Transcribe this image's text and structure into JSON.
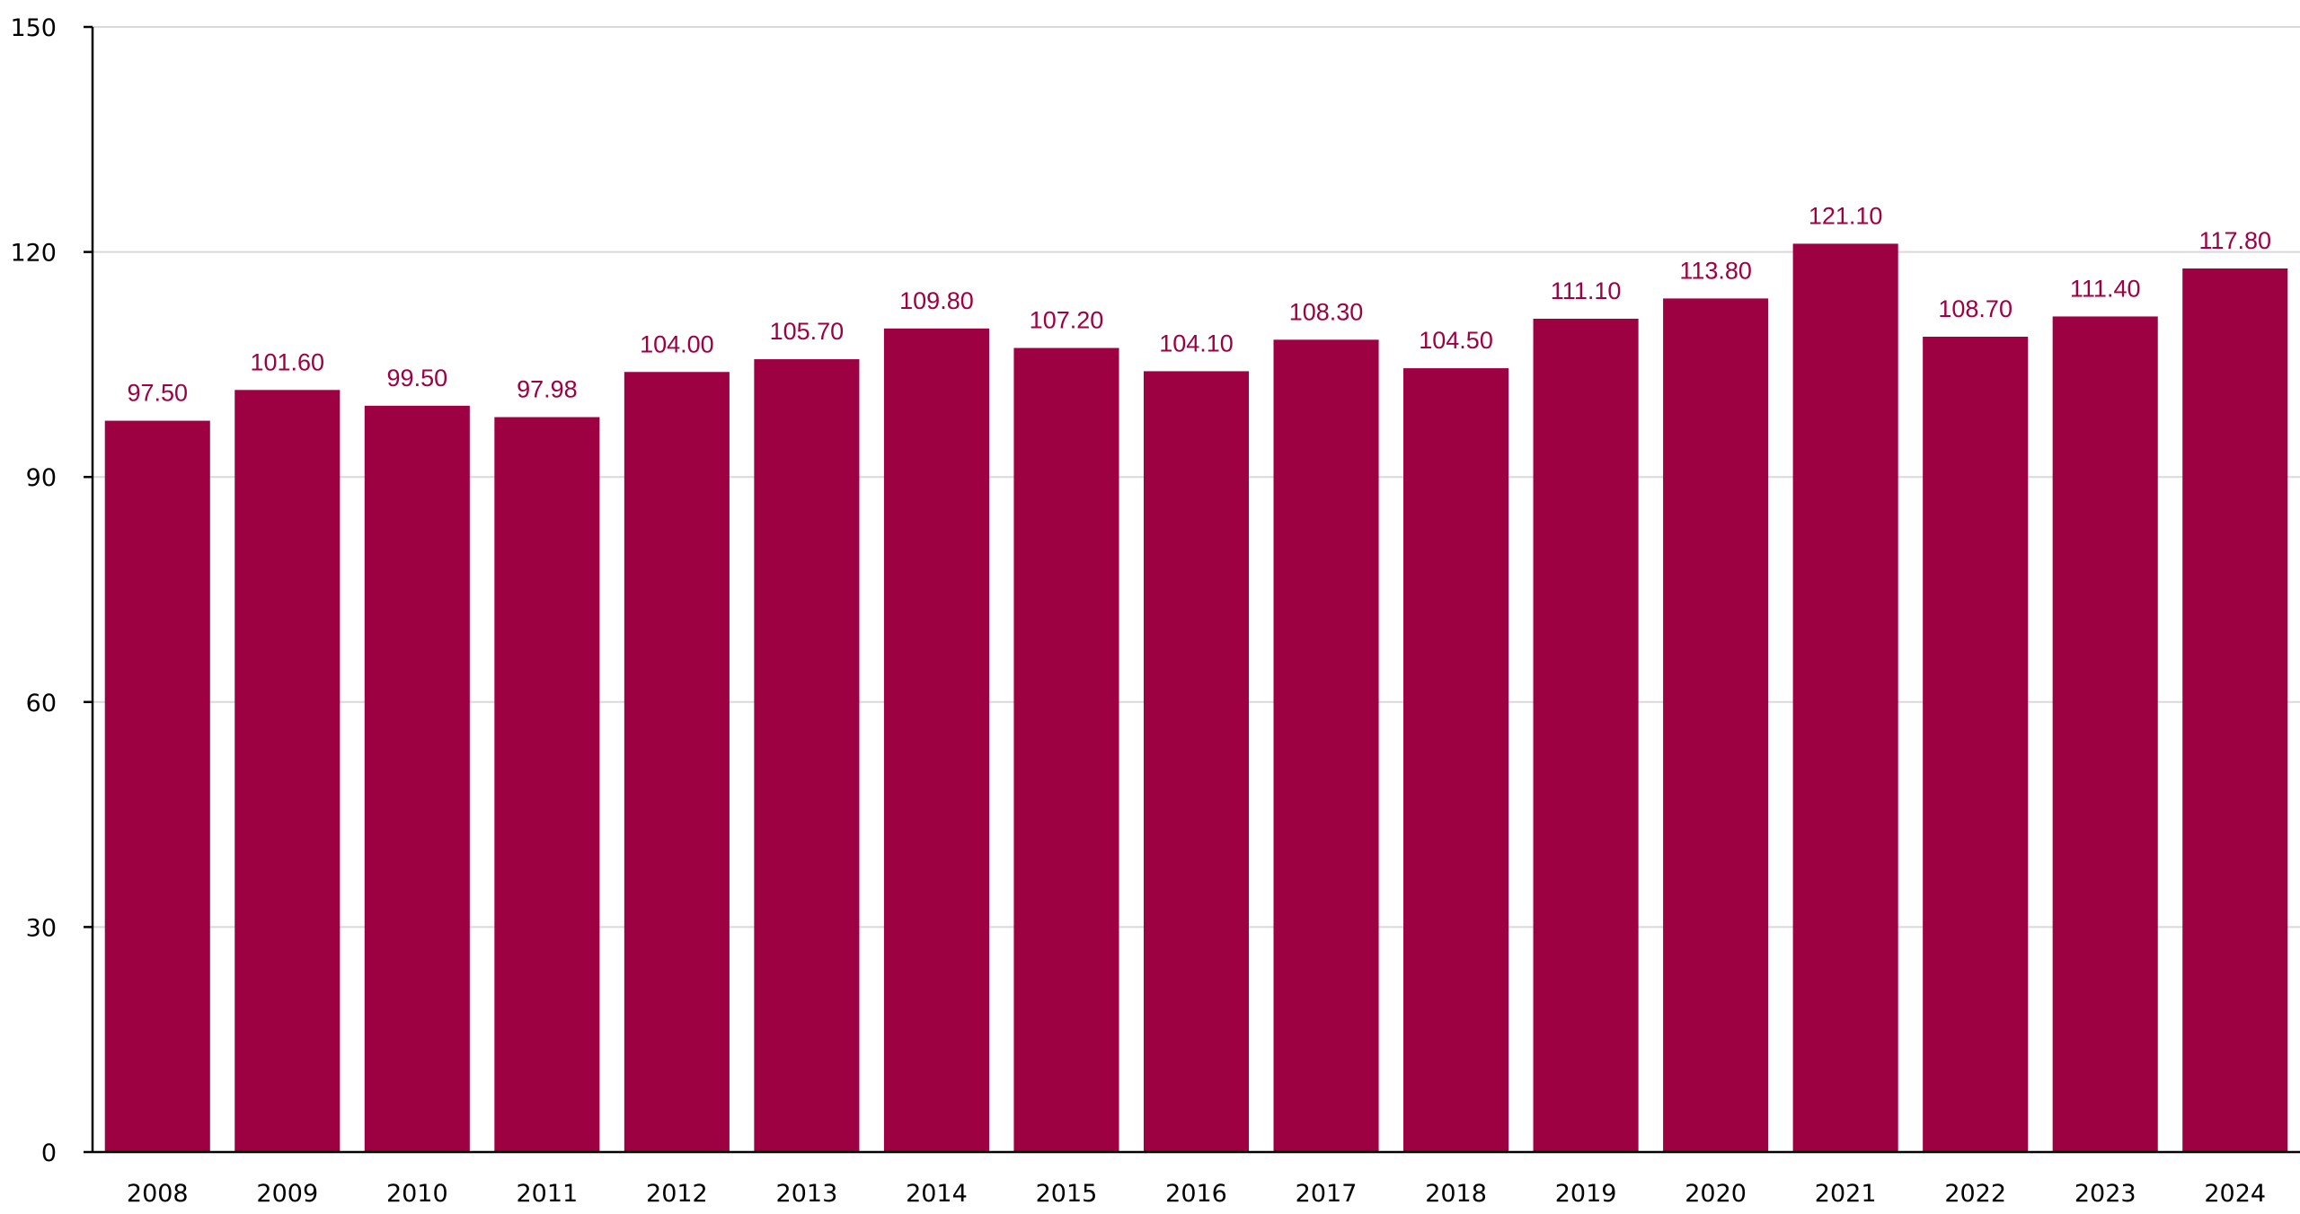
{
  "chart_data": {
    "type": "bar",
    "title": "",
    "xlabel": "",
    "ylabel": "",
    "categories": [
      "2008",
      "2009",
      "2010",
      "2011",
      "2012",
      "2013",
      "2014",
      "2015",
      "2016",
      "2017",
      "2018",
      "2019",
      "2020",
      "2021",
      "2022",
      "2023",
      "2024"
    ],
    "values": [
      97.5,
      101.6,
      99.5,
      97.98,
      104.0,
      105.7,
      109.8,
      107.2,
      104.1,
      108.3,
      104.5,
      111.1,
      113.8,
      121.1,
      108.7,
      111.4,
      117.8
    ],
    "value_labels": [
      "97.50",
      "101.60",
      "99.50",
      "97.98",
      "104.00",
      "105.70",
      "109.80",
      "107.20",
      "104.10",
      "108.30",
      "104.50",
      "111.10",
      "113.80",
      "121.10",
      "108.70",
      "111.40",
      "117.80"
    ],
    "ylim": [
      0,
      150
    ],
    "yticks": [
      0,
      30,
      60,
      90,
      120,
      150
    ],
    "ytick_labels": [
      "0",
      "30",
      "60",
      "90",
      "120",
      "150"
    ],
    "grid": true,
    "legend": "none",
    "colors": {
      "bar": "#9e0142",
      "data_label": "#9e0142",
      "grid": "#d9d9d9",
      "axis": "#000000"
    }
  }
}
